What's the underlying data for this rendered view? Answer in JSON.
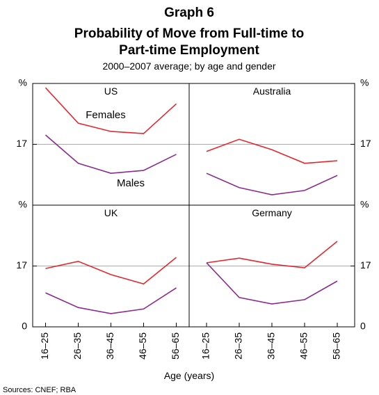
{
  "title": "Graph 6",
  "subtitle": [
    "Probability of Move from Full-time to",
    "Part-time Employment"
  ],
  "note": "2000–2007 average; by age and gender",
  "x_label": "Age (years)",
  "source": "Sources: CNEF; RBA",
  "chart_data": [
    {
      "type": "line",
      "title": "US",
      "ylim": [
        0,
        34
      ],
      "yticks": [
        17,
        {
          "value": 34,
          "label": "%"
        }
      ],
      "series": [
        {
          "name": "Females",
          "color": "#e8262d",
          "values": [
            32.8,
            22.9,
            20.6,
            20.0,
            28.3
          ]
        },
        {
          "name": "Males",
          "color": "#8b2a8f",
          "values": [
            19.6,
            11.7,
            8.9,
            9.7,
            14.2
          ]
        }
      ]
    },
    {
      "type": "line",
      "title": "Australia",
      "ylim": [
        0,
        34
      ],
      "yticks": [
        17,
        {
          "value": 34,
          "label": "%"
        }
      ],
      "series": [
        {
          "color": "#e8262d",
          "values": [
            15.0,
            18.4,
            15.5,
            11.7,
            12.4
          ]
        },
        {
          "color": "#8b2a8f",
          "values": [
            8.9,
            4.9,
            2.9,
            4.1,
            8.3
          ]
        }
      ]
    },
    {
      "type": "line",
      "title": "UK",
      "ylim": [
        0,
        34
      ],
      "yticks": [
        0,
        17,
        {
          "value": 34,
          "label": "%"
        }
      ],
      "categories": [
        "16–25",
        "26–35",
        "36–45",
        "46–55",
        "56–65"
      ],
      "series": [
        {
          "color": "#e8262d",
          "values": [
            16.3,
            18.3,
            14.6,
            12.0,
            19.4
          ]
        },
        {
          "color": "#8b2a8f",
          "values": [
            9.5,
            5.4,
            3.7,
            5.0,
            10.9
          ]
        }
      ]
    },
    {
      "type": "line",
      "title": "Germany",
      "ylim": [
        0,
        34
      ],
      "yticks": [
        0,
        17,
        {
          "value": 34,
          "label": "%"
        }
      ],
      "categories": [
        "16–25",
        "26–35",
        "36–45",
        "46–55",
        "56–65"
      ],
      "series": [
        {
          "color": "#e8262d",
          "values": [
            17.9,
            19.2,
            17.5,
            16.5,
            23.9
          ]
        },
        {
          "color": "#8b2a8f",
          "values": [
            17.9,
            8.2,
            6.4,
            7.6,
            12.8
          ]
        }
      ]
    }
  ]
}
